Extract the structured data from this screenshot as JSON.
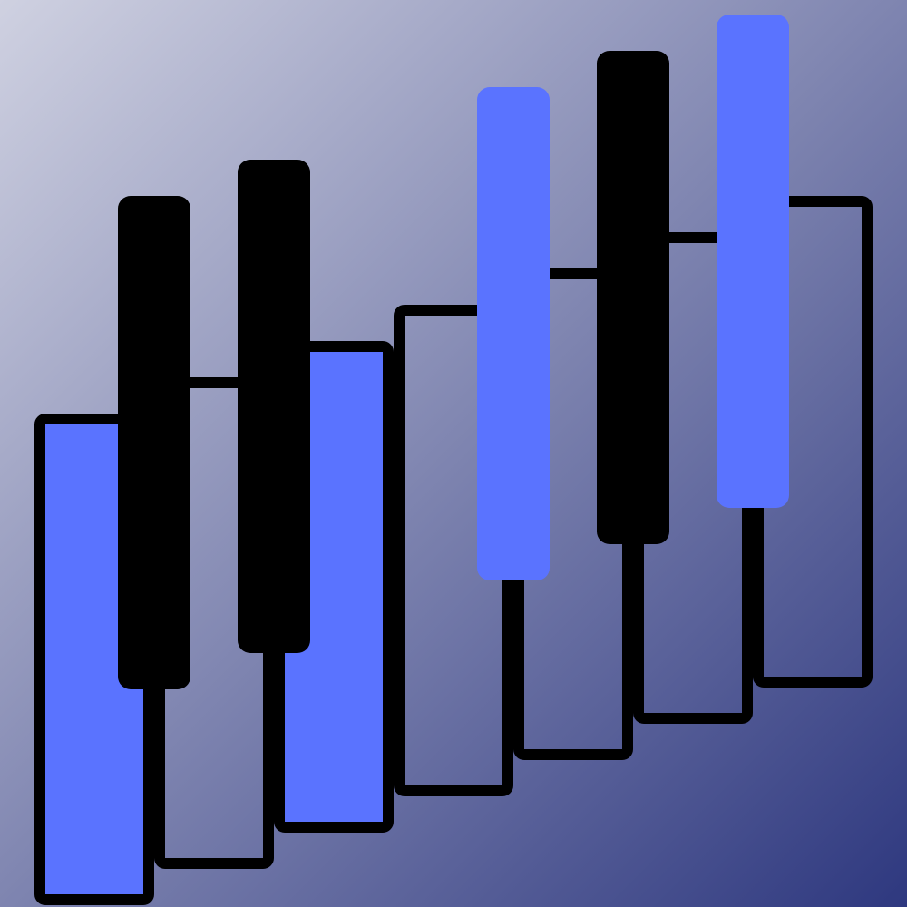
{
  "icon": {
    "name": "piano-keys-icon",
    "colors": {
      "background_top_left": "#cfd1e1",
      "background_bottom_right": "#2e387f",
      "white_key_fill": "transparent",
      "key_outline": "#000000",
      "black_key": "#000000",
      "highlight_key": "#5a73ff"
    },
    "white_keys": [
      {
        "name": "white-key-1",
        "pressed": true
      },
      {
        "name": "white-key-2",
        "pressed": false
      },
      {
        "name": "white-key-3",
        "pressed": true
      },
      {
        "name": "white-key-4",
        "pressed": false
      },
      {
        "name": "white-key-5",
        "pressed": false
      },
      {
        "name": "white-key-6",
        "pressed": false
      },
      {
        "name": "white-key-7",
        "pressed": false
      }
    ],
    "black_keys": [
      {
        "name": "black-key-1",
        "pressed": false
      },
      {
        "name": "black-key-2",
        "pressed": false
      },
      {
        "name": "black-key-3",
        "pressed": true
      },
      {
        "name": "black-key-4",
        "pressed": false
      },
      {
        "name": "black-key-5",
        "pressed": true
      }
    ]
  }
}
